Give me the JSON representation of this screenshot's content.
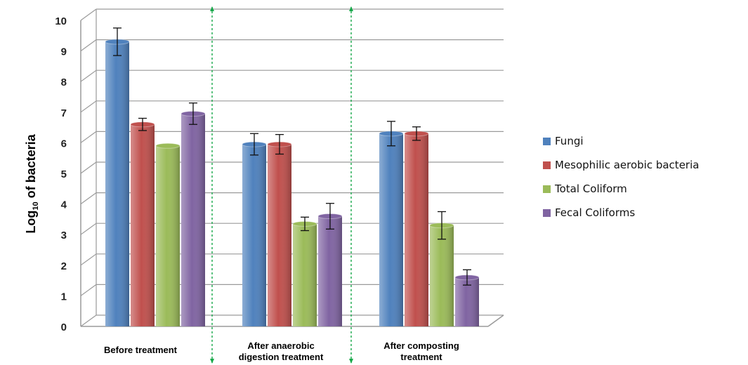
{
  "chart_data": {
    "type": "bar",
    "ylabel": {
      "main": "Log",
      "subscript": "10",
      "rest": " of bacteria"
    },
    "ylim": [
      0,
      10
    ],
    "yticks": [
      "0",
      "1",
      "2",
      "3",
      "4",
      "5",
      "6",
      "7",
      "8",
      "9",
      "10"
    ],
    "categories": [
      [
        "Before treatment"
      ],
      [
        "After anaerobic",
        "digestion treatment"
      ],
      [
        "After composting",
        "treatment"
      ]
    ],
    "series": [
      {
        "name": "Fungi",
        "color": "#4f81bd",
        "values": [
          9.3,
          5.95,
          6.3
        ],
        "errors": [
          0.45,
          0.35,
          0.4
        ]
      },
      {
        "name": "Mesophilic aerobic bacteria",
        "color": "#c0504d",
        "values": [
          6.6,
          5.95,
          6.3
        ],
        "errors": [
          0.2,
          0.32,
          0.22
        ]
      },
      {
        "name": "Total Coliform",
        "color": "#9bbb59",
        "values": [
          5.9,
          3.35,
          3.3
        ],
        "errors": [
          0,
          0.22,
          0.45
        ]
      },
      {
        "name": "Fecal Coliforms",
        "color": "#8064a2",
        "values": [
          6.95,
          3.6,
          1.6
        ],
        "errors": [
          0.35,
          0.42,
          0.25
        ]
      }
    ],
    "grid": true,
    "legend_position": "right"
  }
}
